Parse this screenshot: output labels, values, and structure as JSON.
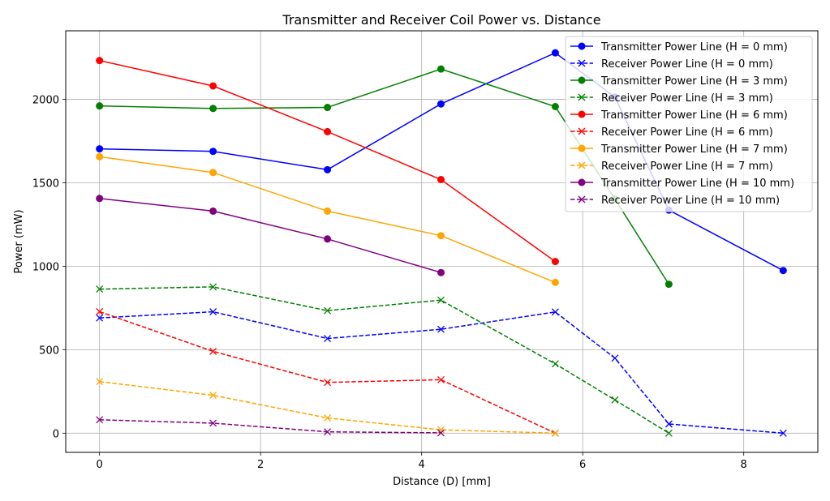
{
  "chart_data": {
    "type": "line",
    "title": "Transmitter and Receiver Coil Power vs. Distance",
    "xlabel": "Distance (D) [mm]",
    "ylabel": "Power (mW)",
    "xlim": [
      -0.42,
      8.92
    ],
    "ylim": [
      -115,
      2410
    ],
    "xticks": [
      0,
      2,
      4,
      6,
      8
    ],
    "yticks": [
      0,
      500,
      1000,
      1500,
      2000
    ],
    "grid": true,
    "legend_position": "top-right",
    "series": [
      {
        "name": "Transmitter Power Line (H = 0 mm)",
        "color": "#0000ff",
        "style": "solid",
        "marker": "circle",
        "x": [
          0,
          1.41,
          2.83,
          4.24,
          5.66,
          6.4,
          7.07,
          8.49
        ],
        "y": [
          1703,
          1688,
          1578,
          1972,
          2278,
          2013,
          1336,
          974
        ]
      },
      {
        "name": "Receiver Power Line (H = 0 mm)",
        "color": "#0000ff",
        "style": "dashed",
        "marker": "x",
        "x": [
          0,
          1.41,
          2.83,
          4.24,
          5.66,
          6.4,
          7.07,
          8.49
        ],
        "y": [
          690,
          727,
          567,
          622,
          726,
          449,
          55,
          0
        ]
      },
      {
        "name": "Transmitter Power Line (H = 3 mm)",
        "color": "#008000",
        "style": "solid",
        "marker": "circle",
        "x": [
          0,
          1.41,
          2.83,
          4.24,
          5.66,
          6.4,
          7.07
        ],
        "y": [
          1960,
          1945,
          1951,
          2181,
          1956,
          1402,
          892
        ]
      },
      {
        "name": "Receiver Power Line (H = 3 mm)",
        "color": "#008000",
        "style": "dashed",
        "marker": "x",
        "x": [
          0,
          1.41,
          2.83,
          4.24,
          5.66,
          6.4,
          7.07
        ],
        "y": [
          863,
          876,
          734,
          797,
          415,
          199,
          0
        ]
      },
      {
        "name": "Transmitter Power Line (H = 6 mm)",
        "color": "#ff0000",
        "style": "solid",
        "marker": "circle",
        "x": [
          0,
          1.41,
          2.83,
          4.24,
          5.66
        ],
        "y": [
          2232,
          2080,
          1806,
          1519,
          1028
        ]
      },
      {
        "name": "Receiver Power Line (H = 6 mm)",
        "color": "#ff0000",
        "style": "dashed",
        "marker": "x",
        "x": [
          0,
          1.41,
          2.83,
          4.24,
          5.66
        ],
        "y": [
          728,
          490,
          304,
          320,
          0
        ]
      },
      {
        "name": "Transmitter Power Line (H = 7 mm)",
        "color": "#ffa500",
        "style": "solid",
        "marker": "circle",
        "x": [
          0,
          1.41,
          2.83,
          4.24,
          5.66
        ],
        "y": [
          1656,
          1561,
          1330,
          1183,
          903
        ]
      },
      {
        "name": "Receiver Power Line (H = 7 mm)",
        "color": "#ffa500",
        "style": "dashed",
        "marker": "x",
        "x": [
          0,
          1.41,
          2.83,
          4.24,
          5.66
        ],
        "y": [
          309,
          227,
          91,
          20,
          0
        ]
      },
      {
        "name": "Transmitter Power Line (H = 10 mm)",
        "color": "#800080",
        "style": "solid",
        "marker": "circle",
        "x": [
          0,
          1.41,
          2.83,
          4.24
        ],
        "y": [
          1406,
          1330,
          1163,
          962
        ]
      },
      {
        "name": "Receiver Power Line (H = 10 mm)",
        "color": "#800080",
        "style": "dashed",
        "marker": "x",
        "x": [
          0,
          1.41,
          2.83,
          4.24
        ],
        "y": [
          80,
          60,
          8,
          2
        ]
      }
    ]
  }
}
